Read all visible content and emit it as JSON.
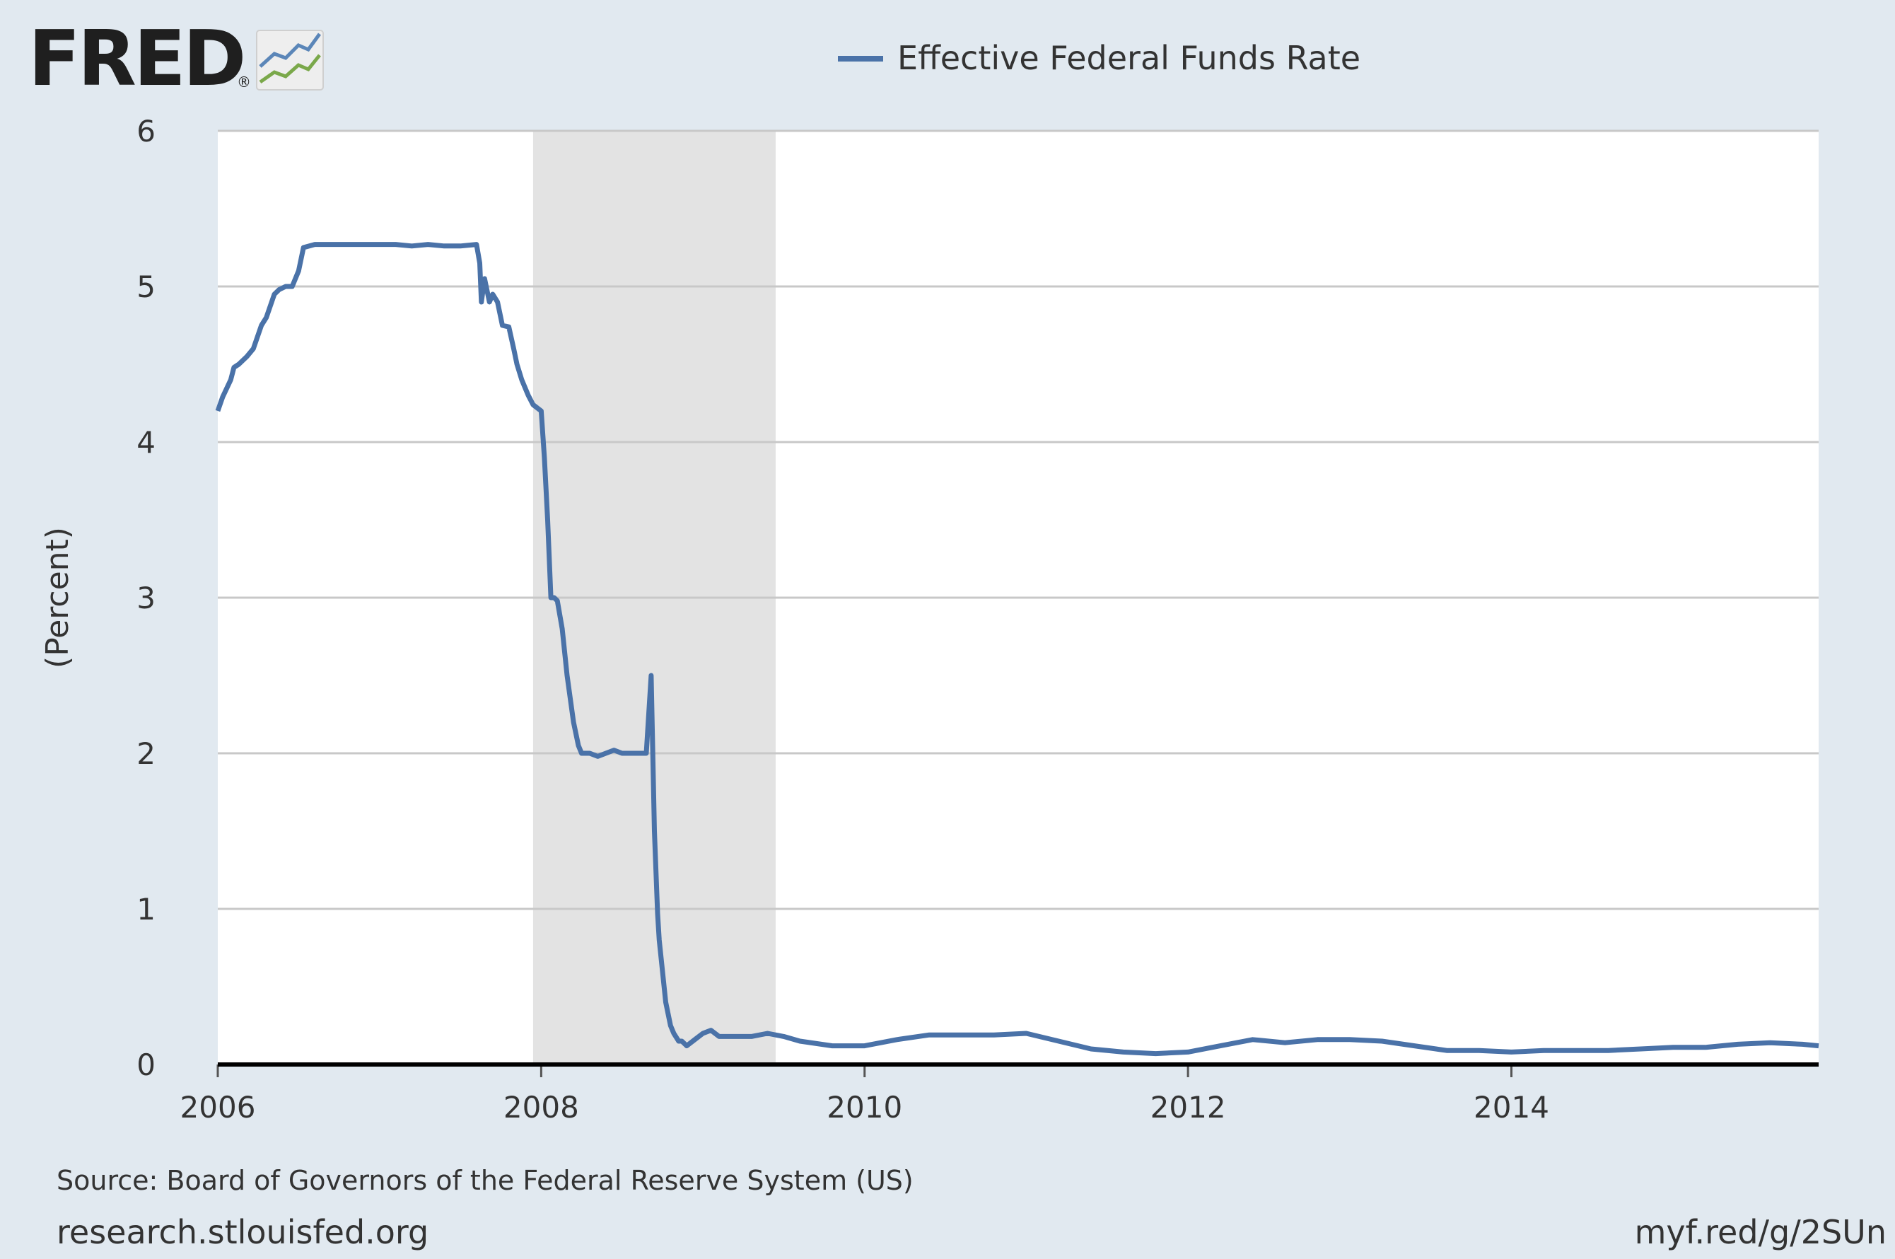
{
  "logo": {
    "text": "FRED",
    "registered": "®",
    "icon": "chart-lines-icon"
  },
  "legend": {
    "series_name": "Effective Federal Funds Rate",
    "color": "#4a72a8"
  },
  "chart_data": {
    "type": "line",
    "title": "Effective Federal Funds Rate",
    "xlabel": "",
    "ylabel": "(Percent)",
    "xlim": [
      2006.0,
      2015.9
    ],
    "ylim": [
      0,
      6
    ],
    "yticks": [
      0,
      1,
      2,
      3,
      4,
      5,
      6
    ],
    "ytick_labels": [
      "0",
      "1",
      "2",
      "3",
      "4",
      "5",
      "6"
    ],
    "xticks": [
      2006,
      2008,
      2010,
      2012,
      2014
    ],
    "xtick_labels": [
      "2006",
      "2008",
      "2010",
      "2012",
      "2014"
    ],
    "grid": true,
    "recession": {
      "start": 2007.95,
      "end": 2009.45,
      "color": "#e3e3e3"
    },
    "series": [
      {
        "name": "Effective Federal Funds Rate",
        "color": "#4a72a8",
        "x": [
          2006.0,
          2006.03,
          2006.08,
          2006.1,
          2006.13,
          2006.18,
          2006.22,
          2006.27,
          2006.3,
          2006.35,
          2006.38,
          2006.42,
          2006.46,
          2006.5,
          2006.53,
          2006.6,
          2006.7,
          2006.8,
          2006.9,
          2007.0,
          2007.1,
          2007.2,
          2007.3,
          2007.4,
          2007.5,
          2007.6,
          2007.62,
          2007.63,
          2007.65,
          2007.68,
          2007.7,
          2007.73,
          2007.76,
          2007.8,
          2007.83,
          2007.85,
          2007.88,
          2007.92,
          2007.95,
          2008.0,
          2008.02,
          2008.04,
          2008.06,
          2008.08,
          2008.1,
          2008.13,
          2008.16,
          2008.2,
          2008.23,
          2008.25,
          2008.3,
          2008.35,
          2008.4,
          2008.45,
          2008.5,
          2008.55,
          2008.6,
          2008.65,
          2008.68,
          2008.7,
          2008.72,
          2008.73,
          2008.75,
          2008.77,
          2008.8,
          2008.82,
          2008.85,
          2008.87,
          2008.9,
          2008.95,
          2009.0,
          2009.05,
          2009.1,
          2009.2,
          2009.3,
          2009.4,
          2009.5,
          2009.6,
          2009.8,
          2010.0,
          2010.2,
          2010.4,
          2010.6,
          2010.8,
          2011.0,
          2011.2,
          2011.4,
          2011.6,
          2011.8,
          2012.0,
          2012.2,
          2012.4,
          2012.6,
          2012.8,
          2013.0,
          2013.2,
          2013.4,
          2013.6,
          2013.8,
          2014.0,
          2014.2,
          2014.4,
          2014.6,
          2014.8,
          2015.0,
          2015.2,
          2015.4,
          2015.6,
          2015.8,
          2015.9
        ],
        "values": [
          4.2,
          4.29,
          4.4,
          4.48,
          4.5,
          4.55,
          4.6,
          4.75,
          4.8,
          4.95,
          4.98,
          5.0,
          5.0,
          5.1,
          5.25,
          5.27,
          5.27,
          5.27,
          5.27,
          5.27,
          5.27,
          5.26,
          5.27,
          5.26,
          5.26,
          5.27,
          5.15,
          4.9,
          5.05,
          4.9,
          4.95,
          4.9,
          4.75,
          4.74,
          4.6,
          4.5,
          4.4,
          4.3,
          4.24,
          4.2,
          3.9,
          3.5,
          3.0,
          3.0,
          2.98,
          2.8,
          2.5,
          2.2,
          2.05,
          2.0,
          2.0,
          1.98,
          2.0,
          2.02,
          2.0,
          2.0,
          2.0,
          2.0,
          2.5,
          1.5,
          0.97,
          0.8,
          0.6,
          0.4,
          0.25,
          0.2,
          0.15,
          0.15,
          0.12,
          0.16,
          0.2,
          0.22,
          0.18,
          0.18,
          0.18,
          0.2,
          0.18,
          0.15,
          0.12,
          0.12,
          0.16,
          0.19,
          0.19,
          0.19,
          0.2,
          0.15,
          0.1,
          0.08,
          0.07,
          0.08,
          0.12,
          0.16,
          0.14,
          0.16,
          0.16,
          0.15,
          0.12,
          0.09,
          0.09,
          0.08,
          0.09,
          0.09,
          0.09,
          0.1,
          0.11,
          0.11,
          0.13,
          0.14,
          0.13,
          0.12
        ]
      }
    ]
  },
  "footer": {
    "source": "Source: Board of Governors of the Federal Reserve System (US)",
    "url": "research.stlouisfed.org",
    "short_link": "myf.red/g/2SUn"
  }
}
